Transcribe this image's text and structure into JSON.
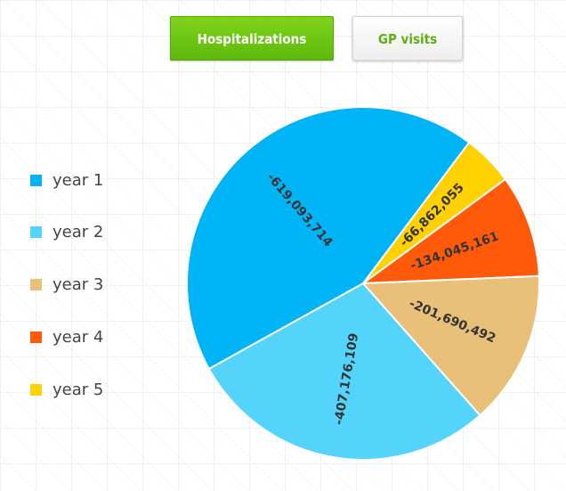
{
  "tabs": {
    "hospitalizations_label": "Hospitalizations",
    "gp_visits_label": "GP visits"
  },
  "chart_data": {
    "type": "pie",
    "legend_position": "left",
    "slices": [
      {
        "name": "year 1",
        "value": -619093714,
        "label": "-619,093,714",
        "color": "#00b4f6"
      },
      {
        "name": "year 2",
        "value": -407176109,
        "label": "-407,176,109",
        "color": "#55d4fb"
      },
      {
        "name": "year 3",
        "value": -201690492,
        "label": "-201,690,492",
        "color": "#e8c07a"
      },
      {
        "name": "year 4",
        "value": -134045161,
        "label": "-134,045,161",
        "color": "#ff5a0a"
      },
      {
        "name": "year 5",
        "value": -66862055,
        "label": "-66,862,055",
        "color": "#ffd100"
      }
    ]
  }
}
